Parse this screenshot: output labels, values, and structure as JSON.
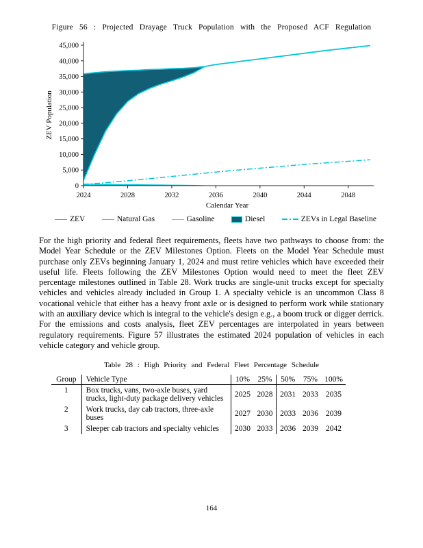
{
  "figure": {
    "caption": "Figure 56 : Projected Drayage Truck Population with the Proposed ACF Regulation"
  },
  "chart_data": {
    "type": "area",
    "title": "Projected Drayage Truck Population with the Proposed ACF Regulation",
    "xlabel": "Calendar Year",
    "ylabel": "ZEV Population",
    "ylim": [
      0,
      45000
    ],
    "y_ticks": [
      0,
      5000,
      10000,
      15000,
      20000,
      25000,
      30000,
      35000,
      40000,
      45000
    ],
    "x_ticks": [
      2024,
      2028,
      2032,
      2036,
      2040,
      2044,
      2048
    ],
    "x": [
      2024,
      2025,
      2026,
      2027,
      2028,
      2029,
      2030,
      2031,
      2032,
      2033,
      2034,
      2035,
      2036,
      2038,
      2040,
      2042,
      2044,
      2046,
      2048,
      2050
    ],
    "series": [
      {
        "name": "Total Population",
        "values": [
          35800,
          36200,
          36500,
          36700,
          36900,
          37000,
          37200,
          37300,
          37500,
          37600,
          37800,
          38200,
          38800,
          39700,
          40600,
          41500,
          42400,
          43300,
          44100,
          44900
        ]
      },
      {
        "name": "ZEV",
        "values": [
          1700,
          10000,
          17500,
          23000,
          27000,
          29500,
          31200,
          32500,
          33600,
          34800,
          36200,
          38200,
          38800,
          39700,
          40600,
          41500,
          42400,
          43300,
          44100,
          44900
        ]
      },
      {
        "name": "Natural Gas",
        "values": [
          500,
          470,
          440,
          400,
          360,
          320,
          280,
          240,
          200,
          160,
          120,
          0,
          0,
          0,
          0,
          0,
          0,
          0,
          0,
          0
        ]
      },
      {
        "name": "Gasoline",
        "values": [
          250,
          230,
          210,
          190,
          170,
          150,
          130,
          110,
          90,
          70,
          50,
          0,
          0,
          0,
          0,
          0,
          0,
          0,
          0,
          0
        ]
      },
      {
        "name": "ZEVs in Legal Baseline",
        "values": [
          400,
          650,
          950,
          1250,
          1550,
          1900,
          2250,
          2600,
          2950,
          3300,
          3650,
          4000,
          4350,
          5000,
          5600,
          6200,
          6800,
          7300,
          7800,
          8300
        ]
      }
    ],
    "diesel_area": {
      "lower": "ZEV",
      "upper": "Total Population",
      "name": "Diesel"
    },
    "legend_position": "bottom",
    "grid": false,
    "colors": {
      "line": "#00c6dc",
      "diesel_fill": "#115e75"
    }
  },
  "legend": {
    "items": [
      {
        "label": "ZEV"
      },
      {
        "label": "Natural Gas"
      },
      {
        "label": "Gasoline"
      },
      {
        "label": "Diesel"
      },
      {
        "label": "ZEVs in Legal Baseline"
      }
    ]
  },
  "body": {
    "paragraph": "For the high priority and federal fleet requirements, fleets have two pathways to choose from: the Model Year Schedule or the ZEV Milestones Option. Fleets on the Model Year Schedule must purchase only ZEVs beginning January 1, 2024 and must retire vehicles which have exceeded their useful life. Fleets following the ZEV Milestones Option would need to meet the fleet ZEV percentage milestones outlined in Table 28. Work trucks are single-unit trucks except for specialty vehicles and vehicles already included in Group 1. A specialty vehicle is an uncommon Class 8 vocational vehicle that either has a heavy front axle or is designed to perform work while stationary with an auxiliary device which is integral to the vehicle's design e.g., a boom truck or digger derrick. For the emissions and costs analysis, fleet ZEV percentages are interpolated in years between regulatory requirements. Figure 57 illustrates the estimated 2024 population of vehicles in each vehicle category and vehicle group."
  },
  "table": {
    "caption": "Table 28 : High Priority and Federal Fleet Percentage Schedule",
    "headers": [
      "Group",
      "Vehicle Type",
      "10%",
      "25%",
      "50%",
      "75%",
      "100%"
    ],
    "rows": [
      {
        "group": "1",
        "vehicle_type": "Box trucks, vans, two-axle buses, yard trucks, light-duty package delivery vehicles",
        "y10": "2025",
        "y25": "2028",
        "y50": "2031",
        "y75": "2033",
        "y100": "2035"
      },
      {
        "group": "2",
        "vehicle_type": "Work trucks, day cab tractors, three-axle buses",
        "y10": "2027",
        "y25": "2030",
        "y50": "2033",
        "y75": "2036",
        "y100": "2039"
      },
      {
        "group": "3",
        "vehicle_type": "Sleeper cab tractors and specialty vehicles",
        "y10": "2030",
        "y25": "2033",
        "y50": "2036",
        "y75": "2039",
        "y100": "2042"
      }
    ]
  },
  "page": {
    "number": "164"
  }
}
